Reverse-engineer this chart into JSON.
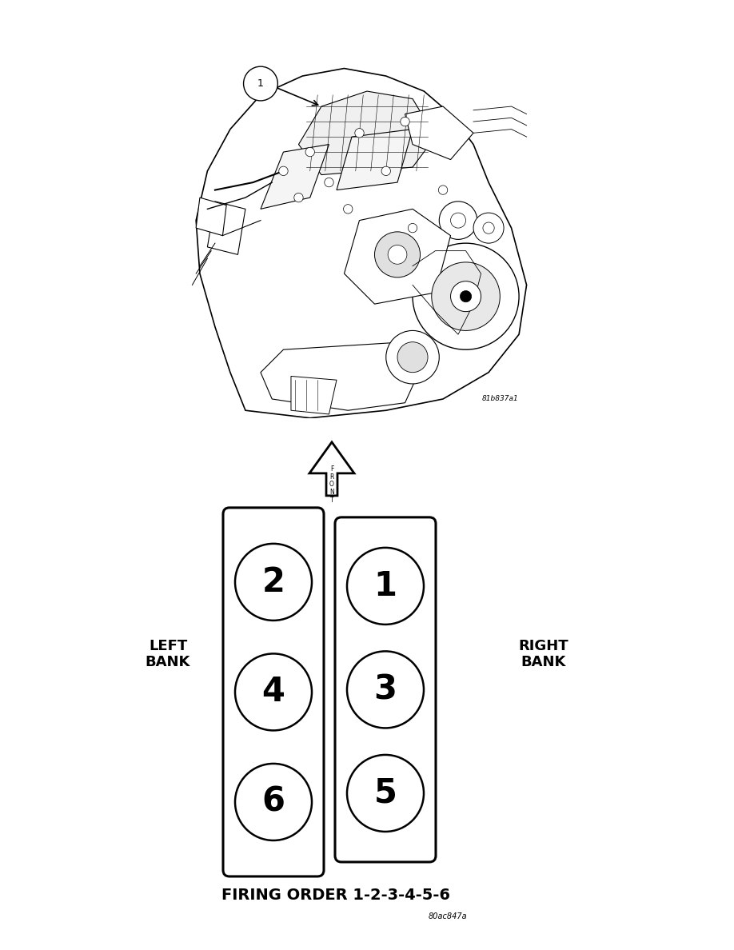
{
  "bg_color": "#ffffff",
  "fig_width": 9.18,
  "fig_height": 11.88,
  "dpi": 100,
  "engine_image_caption": "81b837a1",
  "left_bank_label": "LEFT\nBANK",
  "right_bank_label": "RIGHT\nBANK",
  "left_cylinders": [
    "2",
    "4",
    "6"
  ],
  "right_cylinders": [
    "1",
    "3",
    "5"
  ],
  "firing_order_text": "FIRING ORDER 1-2-3-4-5-6",
  "figure_code2": "80ac847a",
  "cylinder_fontsize": 30,
  "bank_label_fontsize": 13,
  "firing_order_fontsize": 14
}
